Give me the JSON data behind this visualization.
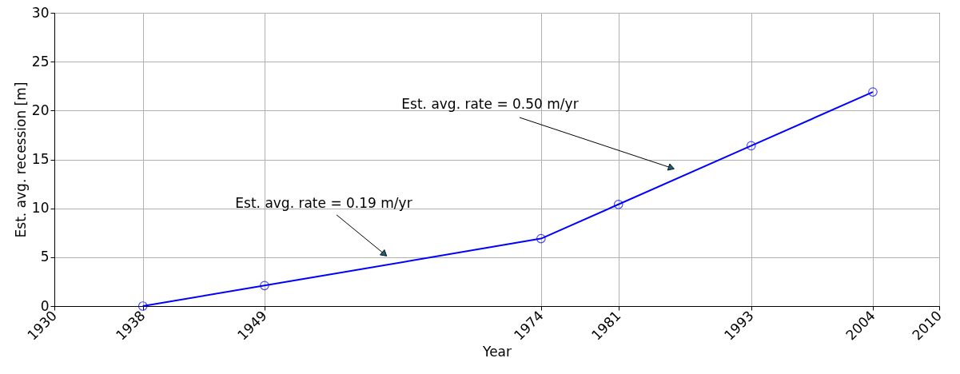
{
  "chart_data": {
    "type": "line",
    "xlabel": "Year",
    "ylabel": "Est. avg. recession [m]",
    "x": [
      1938,
      1949,
      1974,
      1981,
      1993,
      2004
    ],
    "series": [
      {
        "color": "#0000ff",
        "values": [
          0,
          2.1,
          6.9,
          10.4,
          16.4,
          21.9
        ]
      }
    ],
    "xlim": [
      1930,
      2010
    ],
    "xticks": [
      1930,
      1938,
      1949,
      1974,
      1981,
      1993,
      2004,
      2010
    ],
    "ylim": [
      0,
      30
    ],
    "yticks": [
      0,
      5,
      10,
      15,
      20,
      25,
      30
    ],
    "grid": true,
    "marker": "circle",
    "line_style": "solid",
    "annotations": [
      "Est. avg. rate = 0.19 m/yr",
      "Est. avg. rate = 0.50 m/yr"
    ]
  }
}
